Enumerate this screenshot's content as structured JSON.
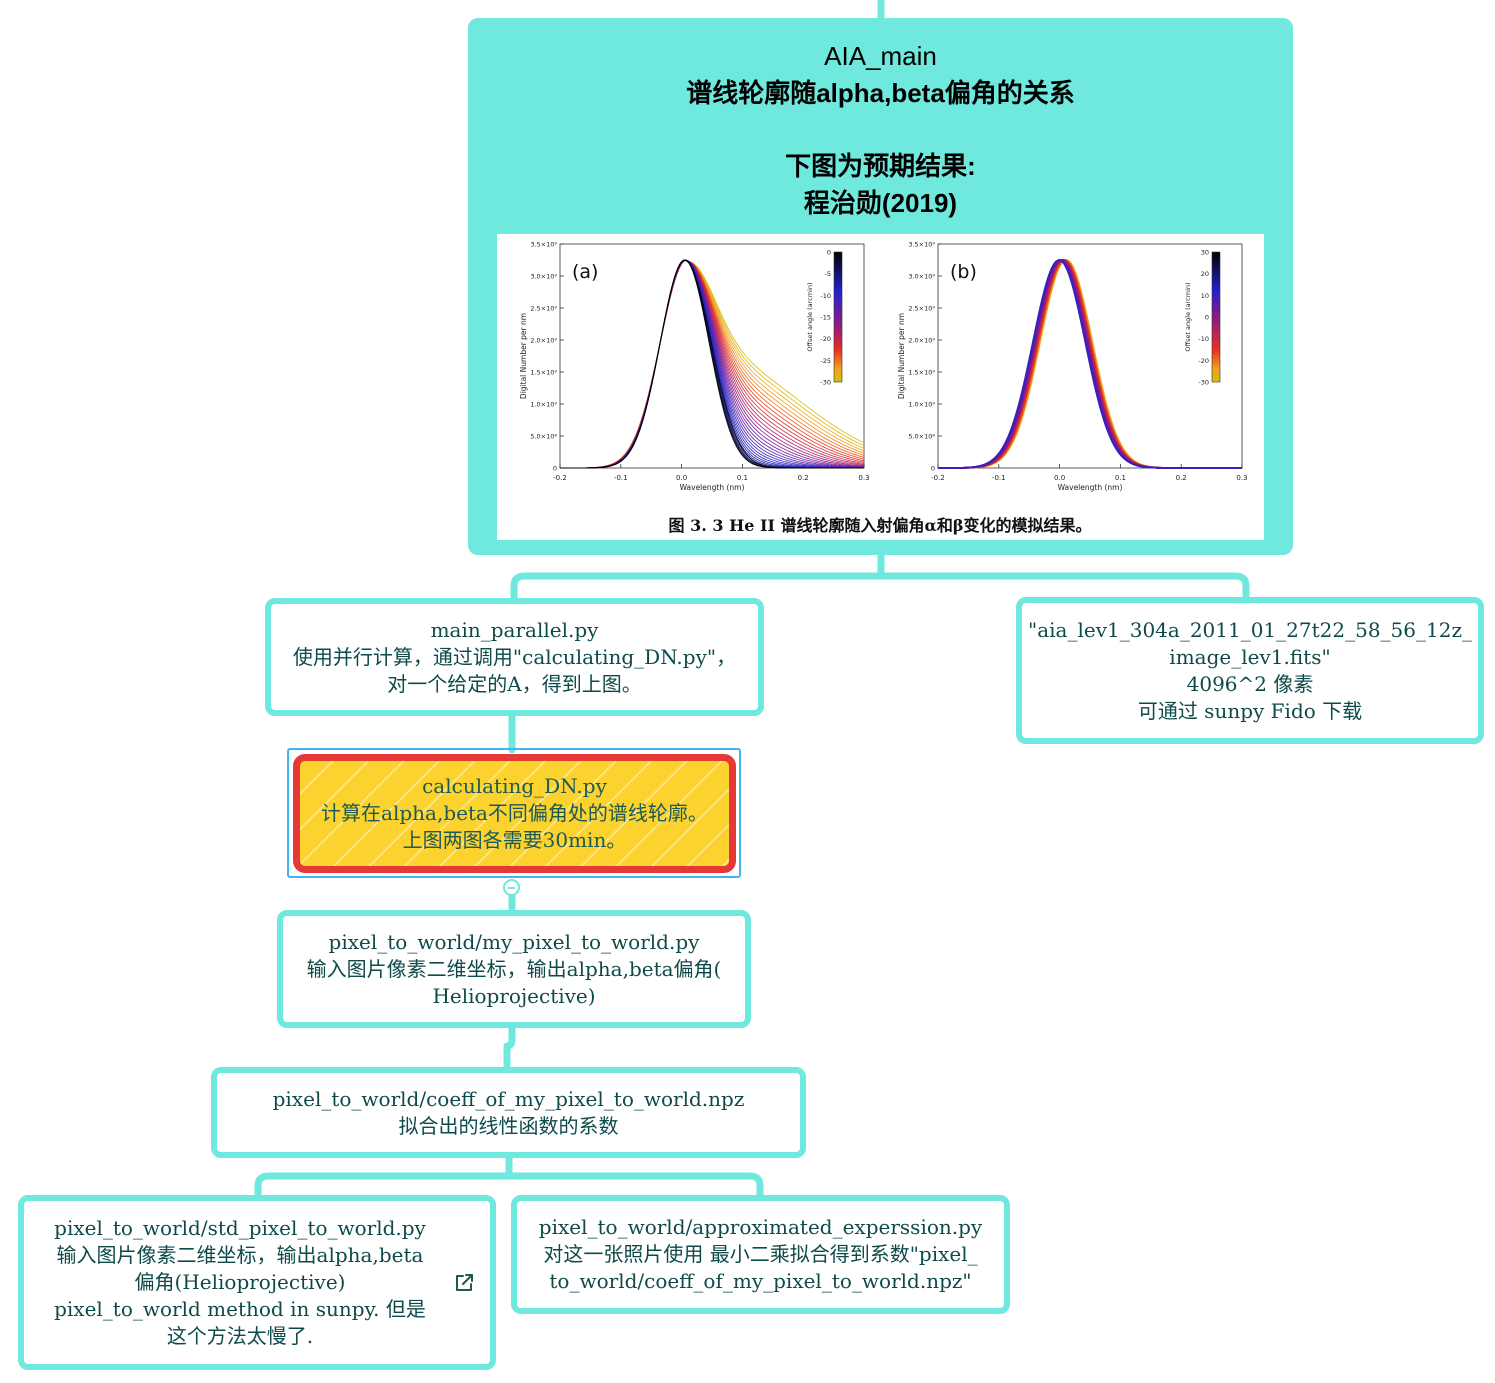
{
  "colors": {
    "node_border": "#6fe8dd",
    "root_fill": "#6fe8dd",
    "highlight_fill": "#fcd22e",
    "highlight_border": "#e53935",
    "selection": "#41b3f0",
    "text": "#0f4a4a"
  },
  "root": {
    "title": "AIA_main",
    "subtitle": "谱线轮廓随alpha,beta偏角的关系",
    "note1": "下图为预期结果:",
    "note2": "程治勋(2019)"
  },
  "figure": {
    "caption": "图 3. 3    He II 谱线轮廓随入射偏角α和β变化的模拟结果。",
    "panel_a_label": "(a)",
    "panel_b_label": "(b)",
    "colorbar_a_title": "Offset angle (arcmin)",
    "colorbar_b_title": "Offset angle (arcmin)",
    "colorbar_a_ticks": [
      "0",
      "-5",
      "-10",
      "-15",
      "-20",
      "-25",
      "-30"
    ],
    "colorbar_b_ticks": [
      "30",
      "20",
      "10",
      "0",
      "-10",
      "-20",
      "-30"
    ]
  },
  "chart_data": [
    {
      "type": "line",
      "title": "(a)",
      "xlabel": "Wavelength (nm)",
      "ylabel": "Digital Number per nm",
      "xlim": [
        -0.2,
        0.3
      ],
      "ylim": [
        0,
        3500000000.0
      ],
      "x_ticks": [
        "-0.2",
        "-0.1",
        "0.0",
        "0.1",
        "0.2",
        "0.3"
      ],
      "y_ticks": [
        "0",
        "5.0×10⁸",
        "1.0×10⁹",
        "1.5×10⁹",
        "2.0×10⁹",
        "2.5×10⁹",
        "3.0×10⁹",
        "3.5×10⁹"
      ],
      "colorbar_range": [
        -30,
        0
      ],
      "series_note": "family of profiles, one per offset angle from 0 (black/blue) to -30 (yellow)",
      "profile_peak": 3250000000.0,
      "profile_center": 0.005
    },
    {
      "type": "line",
      "title": "(b)",
      "xlabel": "Wavelength (nm)",
      "ylabel": "Digital Number per nm",
      "xlim": [
        -0.2,
        0.3
      ],
      "ylim": [
        0,
        3500000000.0
      ],
      "x_ticks": [
        "-0.2",
        "-0.1",
        "0.0",
        "0.1",
        "0.2",
        "0.3"
      ],
      "y_ticks": [
        "0",
        "5.0×10⁸",
        "1.0×10⁹",
        "1.5×10⁹",
        "2.0×10⁹",
        "2.5×10⁹",
        "3.0×10⁹",
        "3.5×10⁹"
      ],
      "colorbar_range": [
        -30,
        30
      ],
      "profile_peak": 3250000000.0,
      "profile_center": 0.005
    }
  ],
  "nodes": {
    "main_parallel": {
      "line1": "main_parallel.py",
      "line2": "使用并行计算，通过调用\"calculating_DN.py\"，",
      "line3": "对一个给定的A，得到上图。"
    },
    "aia_file": {
      "line1": "\"aia_lev1_304a_2011_01_27t22_58_56_12z_",
      "line2": "image_lev1.fits\"",
      "line3": "4096^2 像素",
      "line4": "可通过 sunpy Fido 下载"
    },
    "calculating_dn": {
      "line1": "calculating_DN.py",
      "line2": "计算在alpha,beta不同偏角处的谱线轮廓。",
      "line3": "上图两图各需要30min。"
    },
    "pixel_to_world": {
      "line1": "pixel_to_world/my_pixel_to_world.py",
      "line2": "输入图片像素二维坐标，输出alpha,beta偏角(",
      "line3": "Helioprojective)"
    },
    "coeff": {
      "line1": "pixel_to_world/coeff_of_my_pixel_to_world.npz",
      "line2": "拟合出的线性函数的系数"
    },
    "std_pixel": {
      "line1": "pixel_to_world/std_pixel_to_world.py",
      "line2": "输入图片像素二维坐标，输出alpha,beta",
      "line3": "偏角(Helioprojective)",
      "line4": "pixel_to_world method in sunpy. 但是",
      "line5": "这个方法太慢了."
    },
    "approx": {
      "line1": "pixel_to_world/approximated_experssion.py",
      "line2": "对这一张照片使用 最小二乘拟合得到系数\"pixel_",
      "line3": "to_world/coeff_of_my_pixel_to_world.npz\""
    }
  },
  "icons": {
    "external_link": "external-link-icon",
    "collapse": "collapse-toggle-icon"
  }
}
